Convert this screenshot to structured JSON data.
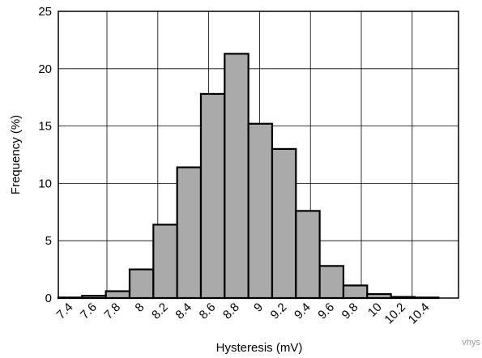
{
  "chart_data": {
    "type": "bar",
    "categories": [
      "7.4",
      "7.6",
      "7.8",
      "8",
      "8.2",
      "8.4",
      "8.6",
      "8.8",
      "9",
      "9.2",
      "9.4",
      "9.6",
      "9.8",
      "10",
      "10.2",
      "10.4"
    ],
    "values": [
      0.05,
      0.2,
      0.6,
      2.5,
      6.4,
      11.4,
      17.8,
      21.3,
      15.2,
      13.0,
      7.6,
      2.8,
      1.1,
      0.35,
      0.1,
      0.05
    ],
    "title": "",
    "xlabel": "Hysteresis (mV)",
    "ylabel": "Frequency (%)",
    "ylim": [
      0,
      25
    ],
    "yticks": [
      "0",
      "5",
      "10",
      "15",
      "20",
      "25"
    ],
    "grid": true,
    "bar_color": "#aaaaaa",
    "bar_edge_color": "#000000"
  },
  "watermark": "vhys"
}
